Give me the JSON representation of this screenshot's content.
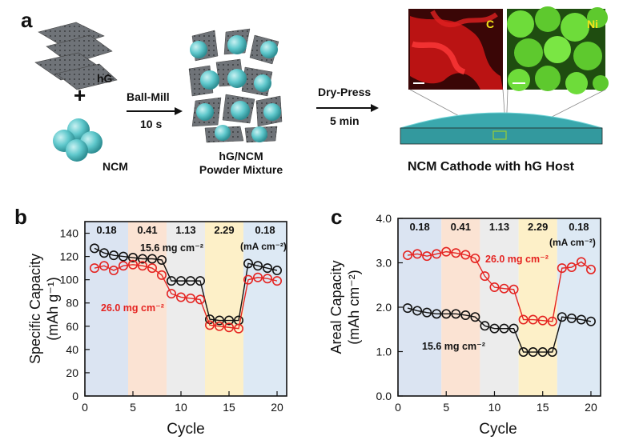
{
  "panel_labels": {
    "a": "a",
    "b": "b",
    "c": "c"
  },
  "schematic": {
    "hg_label": "hG",
    "plus": "+",
    "ncm_label": "NCM",
    "step1_top": "Ball-Mill",
    "step1_bottom": "10 s",
    "mixture_line1": "hG/NCM",
    "mixture_line2": "Powder Mixture",
    "step2_top": "Dry-Press",
    "step2_bottom": "5 min",
    "map_c_label": "C",
    "map_ni_label": "Ni",
    "cathode_title": "NCM Cathode with hG Host",
    "colors": {
      "sphere": "#5fc8cc",
      "carbon_map": "#d81818",
      "ni_map": "#5ec92e",
      "arrow": "#111111"
    }
  },
  "chart_data": [
    {
      "id": "b",
      "type": "line",
      "xlabel": "Cycle",
      "ylabel_line1": "Specific Capacity",
      "ylabel_line2": "(mAh g⁻¹)",
      "xlim": [
        0,
        21
      ],
      "ylim": [
        0,
        150
      ],
      "xticks": [
        0,
        5,
        10,
        15,
        20
      ],
      "yticks": [
        0,
        20,
        40,
        60,
        80,
        100,
        120,
        140
      ],
      "bands": [
        {
          "x0": 0,
          "x1": 4.5,
          "color": "#dbe4f2",
          "label": "0.18"
        },
        {
          "x0": 4.5,
          "x1": 8.5,
          "color": "#fbe3d3",
          "label": "0.41"
        },
        {
          "x0": 8.5,
          "x1": 12.5,
          "color": "#ececec",
          "label": "1.13"
        },
        {
          "x0": 12.5,
          "x1": 16.5,
          "color": "#fdf0c8",
          "label": "2.29"
        },
        {
          "x0": 16.5,
          "x1": 21,
          "color": "#dde9f4",
          "label": "0.18"
        }
      ],
      "unit_note": "(mA cm⁻²)",
      "series": [
        {
          "name": "15.6 mg cm⁻²",
          "color": "#111111",
          "x": [
            1,
            2,
            3,
            4,
            5,
            6,
            7,
            8,
            9,
            10,
            11,
            12,
            13,
            14,
            15,
            16,
            17,
            18,
            19,
            20
          ],
          "values": [
            127,
            123,
            121,
            120,
            119,
            118,
            118,
            117,
            99,
            99,
            99,
            99,
            66,
            65,
            65,
            65,
            114,
            112,
            110,
            108
          ]
        },
        {
          "name": "26.0 mg cm⁻²",
          "color": "#e52421",
          "x": [
            1,
            2,
            3,
            4,
            5,
            6,
            7,
            8,
            9,
            10,
            11,
            12,
            13,
            14,
            15,
            16,
            17,
            18,
            19,
            20
          ],
          "values": [
            110,
            112,
            108,
            112,
            113,
            112,
            110,
            104,
            88,
            85,
            84,
            83,
            61,
            60,
            59,
            58,
            100,
            102,
            101,
            99
          ]
        }
      ]
    },
    {
      "id": "c",
      "type": "line",
      "xlabel": "Cycle",
      "ylabel_line1": "Areal Capacity",
      "ylabel_line2": "(mAh cm⁻²)",
      "xlim": [
        0,
        21
      ],
      "ylim": [
        0,
        4
      ],
      "xticks": [
        0,
        5,
        10,
        15,
        20
      ],
      "yticks": [
        0,
        1,
        2,
        3,
        4
      ],
      "ytick_labels": [
        "0.0",
        "1.0",
        "2.0",
        "3.0",
        "4.0"
      ],
      "bands": [
        {
          "x0": 0,
          "x1": 4.5,
          "color": "#dbe4f2",
          "label": "0.18"
        },
        {
          "x0": 4.5,
          "x1": 8.5,
          "color": "#fbe3d3",
          "label": "0.41"
        },
        {
          "x0": 8.5,
          "x1": 12.5,
          "color": "#ececec",
          "label": "1.13"
        },
        {
          "x0": 12.5,
          "x1": 16.5,
          "color": "#fdf0c8",
          "label": "2.29"
        },
        {
          "x0": 16.5,
          "x1": 21,
          "color": "#dde9f4",
          "label": "0.18"
        }
      ],
      "unit_note": "(mA cm⁻²)",
      "series": [
        {
          "name": "26.0 mg cm⁻²",
          "color": "#e52421",
          "x": [
            1,
            2,
            3,
            4,
            5,
            6,
            7,
            8,
            9,
            10,
            11,
            12,
            13,
            14,
            15,
            16,
            17,
            18,
            19,
            20
          ],
          "values": [
            3.17,
            3.2,
            3.15,
            3.2,
            3.25,
            3.22,
            3.18,
            3.1,
            2.7,
            2.45,
            2.42,
            2.4,
            1.72,
            1.72,
            1.7,
            1.68,
            2.88,
            2.9,
            3.02,
            2.85
          ]
        },
        {
          "name": "15.6 mg cm⁻²",
          "color": "#111111",
          "x": [
            1,
            2,
            3,
            4,
            5,
            6,
            7,
            8,
            9,
            10,
            11,
            12,
            13,
            14,
            15,
            16,
            17,
            18,
            19,
            20
          ],
          "values": [
            1.98,
            1.92,
            1.88,
            1.85,
            1.85,
            1.85,
            1.82,
            1.78,
            1.58,
            1.52,
            1.52,
            1.52,
            0.99,
            0.99,
            0.99,
            0.99,
            1.78,
            1.75,
            1.72,
            1.68
          ]
        }
      ]
    }
  ]
}
